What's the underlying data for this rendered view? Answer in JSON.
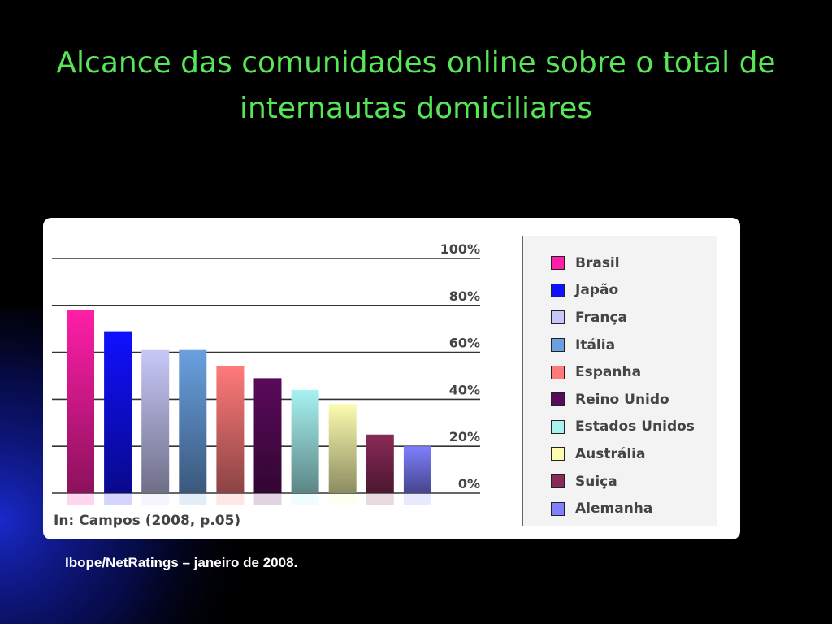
{
  "slide": {
    "title": "Alcance das comunidades online sobre o total de internautas domiciliares",
    "caption": "Ibope/NetRatings – janeiro de 2008."
  },
  "chart_data": {
    "type": "bar",
    "categories": [
      "Brasil",
      "Japão",
      "França",
      "Itália",
      "Espanha",
      "Reino Unido",
      "Estados Unidos",
      "Austrália",
      "Suiça",
      "Alemanha"
    ],
    "values": [
      78,
      69,
      61,
      61,
      54,
      49,
      44,
      38,
      25,
      20
    ],
    "colors": [
      "#ff1ea8",
      "#1010ff",
      "#c8c8f8",
      "#6aa0e0",
      "#ff7a7a",
      "#5a0a5a",
      "#a8f2f2",
      "#fcfcb0",
      "#8a2a58",
      "#7f7fff"
    ],
    "yticks": [
      "100%",
      "80%",
      "60%",
      "40%",
      "20%",
      "0%"
    ],
    "ylim": [
      0,
      100
    ],
    "grid": true,
    "legend_position": "right",
    "source_note": "In: Campos (2008, p.05)"
  }
}
